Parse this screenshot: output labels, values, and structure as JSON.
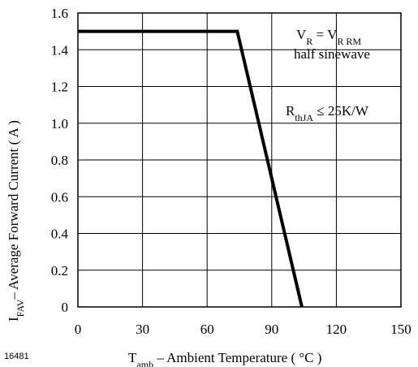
{
  "figure_id": "16481",
  "chart_data": {
    "type": "line",
    "x_unit_main": "amb",
    "xlabel": {
      "main": "T",
      "sub": "amb",
      "rest": " – Ambient Temperature ( °C )"
    },
    "ylabel": {
      "main": "I",
      "sub": "FAV",
      "rest": "– Average Forward Current ( A )"
    },
    "xlim": [
      0,
      150
    ],
    "ylim": [
      0,
      1.6
    ],
    "x_ticks": [
      0,
      30,
      60,
      90,
      120,
      150
    ],
    "x_tick_labels": [
      "0",
      "30",
      "60",
      "90",
      "120",
      "150"
    ],
    "y_ticks": [
      0,
      0.2,
      0.4,
      0.6,
      0.8,
      1.0,
      1.2,
      1.4,
      1.6
    ],
    "y_tick_labels": [
      "0",
      "0.2",
      "0.4",
      "0.6",
      "0.8",
      "1.0",
      "1.2",
      "1.4",
      "1.6"
    ],
    "grid": true,
    "series": [
      {
        "x": [
          0,
          74,
          104
        ],
        "y": [
          1.5,
          1.5,
          0
        ]
      }
    ],
    "annotations": [
      {
        "parts": [
          {
            "t": "V",
            "sub": "R"
          },
          {
            "t": " = V",
            "sub": "R RM"
          }
        ]
      },
      {
        "text": "half sinewave"
      },
      {
        "parts": [
          {
            "t": "R",
            "sub": "thJA"
          },
          {
            "t": " ≤ 25K/W"
          }
        ]
      }
    ]
  }
}
